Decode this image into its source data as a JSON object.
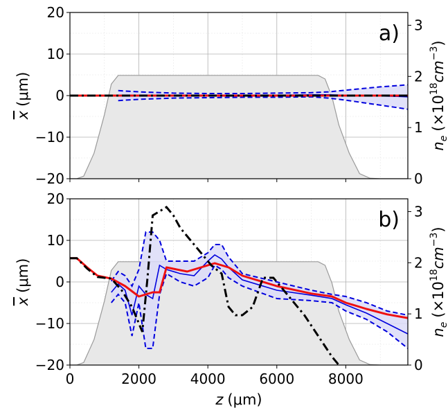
{
  "chart_data": [
    {
      "type": "line",
      "panel_label": "a)",
      "xlabel_main": "z",
      "xlabel_unit": "(μm)",
      "ylabel_symbol": "x",
      "ylabel_unit": "(μm)",
      "ylabel2_symbol": "n",
      "ylabel2_sub": "e",
      "ylabel2_pre": "(×10",
      "ylabel2_exp": "18",
      "ylabel2_mid": "cm",
      "ylabel2_exp2": "−3",
      "ylabel2_post": ")",
      "xlim": [
        0,
        9800
      ],
      "ylim": [
        -20,
        20
      ],
      "y2lim": [
        0,
        3.25
      ],
      "xticks": [
        0,
        2000,
        4000,
        6000,
        8000
      ],
      "yticks": [
        20,
        10,
        0,
        -10,
        -20
      ],
      "ytick_labels": [
        "20",
        "10",
        "0",
        "−10",
        "−20"
      ],
      "y2ticks": [
        3,
        2,
        1,
        0
      ],
      "grid": true,
      "density": {
        "color": "#e8e8e8",
        "z": [
          0,
          200,
          400,
          700,
          1000,
          1200,
          1400,
          7200,
          7400,
          7600,
          7800,
          8100,
          8400,
          8700,
          9000,
          9800
        ],
        "ne": [
          0,
          0,
          0.05,
          0.5,
          1.25,
          1.85,
          2.02,
          2.02,
          1.95,
          1.6,
          1.05,
          0.5,
          0.1,
          0.01,
          0,
          0
        ]
      },
      "band": {
        "color": "#0000dd",
        "fill": "#dcdcf8",
        "z": [
          1400,
          2000,
          3000,
          4000,
          5000,
          6000,
          7000,
          7500,
          8000,
          8500,
          9000,
          9500,
          9800
        ],
        "upper": [
          1.2,
          0.9,
          0.6,
          0.5,
          0.5,
          0.6,
          0.7,
          0.9,
          1.3,
          1.7,
          2.1,
          2.4,
          2.6
        ],
        "lower": [
          -1.2,
          -0.9,
          -0.6,
          -0.5,
          -0.4,
          -0.4,
          -0.3,
          -0.6,
          -1.1,
          -1.7,
          -2.3,
          -2.9,
          -3.3
        ],
        "mean": [
          0,
          0,
          0,
          0,
          0,
          0.1,
          0.2,
          0.2,
          0.1,
          0,
          -0.1,
          -0.2,
          -0.3
        ]
      },
      "red": {
        "color": "#ee1111",
        "x": [
          0,
          9800
        ],
        "y": [
          0,
          0
        ]
      },
      "black": {
        "color": "#000000",
        "x": [
          0,
          1300,
          9800
        ],
        "y": [
          0,
          0,
          0
        ]
      }
    },
    {
      "type": "line",
      "panel_label": "b)",
      "xlabel_main": "z",
      "xlabel_unit": "(μm)",
      "ylabel_symbol": "x",
      "ylabel_unit": "(μm)",
      "ylabel2_symbol": "n",
      "ylabel2_sub": "e",
      "ylabel2_pre": "(×10",
      "ylabel2_exp": "18",
      "ylabel2_mid": "cm",
      "ylabel2_exp2": "−3",
      "ylabel2_post": ")",
      "xlim": [
        0,
        9800
      ],
      "ylim": [
        -20,
        20
      ],
      "y2lim": [
        0,
        3.25
      ],
      "xticks": [
        0,
        2000,
        4000,
        6000,
        8000
      ],
      "xtick_labels": [
        "0",
        "2000",
        "4000",
        "6000",
        "8000"
      ],
      "yticks": [
        20,
        10,
        0,
        -10,
        -20
      ],
      "ytick_labels": [
        "20",
        "10",
        "0",
        "−10",
        "−20"
      ],
      "y2ticks": [
        3,
        2,
        1,
        0
      ],
      "grid": true,
      "density": {
        "color": "#e8e8e8",
        "z": [
          0,
          200,
          400,
          700,
          1000,
          1200,
          1400,
          7200,
          7400,
          7600,
          7800,
          8100,
          8400,
          8700,
          9000,
          9800
        ],
        "ne": [
          0,
          0,
          0.05,
          0.5,
          1.25,
          1.85,
          2.02,
          2.02,
          1.95,
          1.6,
          1.05,
          0.5,
          0.1,
          0.01,
          0,
          0
        ]
      },
      "band": {
        "color": "#0000dd",
        "fill": "#dcdcf8",
        "z": [
          1200,
          1400,
          1600,
          1800,
          2000,
          2200,
          2400,
          2600,
          2800,
          3200,
          3600,
          4000,
          4200,
          4400,
          4600,
          5000,
          6000,
          7000,
          7600,
          8000,
          8600,
          9200,
          9800
        ],
        "upper": [
          0.2,
          2.5,
          1.5,
          -1,
          3,
          12,
          12,
          10,
          5,
          5,
          5,
          7,
          9,
          9,
          6,
          2,
          0,
          -2,
          -3,
          -3.5,
          -5,
          -7,
          -8
        ],
        "lower": [
          -5,
          -3,
          -5,
          -13,
          -5,
          -16,
          -16,
          -3,
          2,
          0,
          -1,
          1,
          4,
          3,
          1,
          -1,
          -4,
          -4.5,
          -5,
          -7,
          -9,
          -12,
          -16
        ],
        "mean": [
          -2.5,
          -0.5,
          -2,
          -8,
          -1,
          -3,
          -4,
          4,
          3,
          2,
          1.5,
          5,
          6.5,
          5.5,
          3.5,
          0.5,
          -2,
          -3.2,
          -4,
          -5.5,
          -7.5,
          -10,
          -12.5
        ]
      },
      "red": {
        "color": "#ee1111",
        "x": [
          0,
          200,
          500,
          800,
          1200,
          1600,
          2000,
          2400,
          2600,
          2800,
          3400,
          3800,
          4200,
          4600,
          5000,
          6000,
          7000,
          7600,
          8000,
          8600,
          9200,
          9800
        ],
        "y": [
          5.7,
          5.7,
          3.5,
          1.5,
          0.8,
          -1,
          -3.5,
          -2.5,
          -2.5,
          3.5,
          2.5,
          3.5,
          4.5,
          3.5,
          1.5,
          -1,
          -2.8,
          -3.5,
          -5,
          -6.5,
          -7.8,
          -8.7
        ]
      },
      "black": {
        "color": "#000000",
        "x": [
          0,
          200,
          500,
          800,
          1200,
          1500,
          1800,
          2100,
          2250,
          2400,
          2600,
          2800,
          3000,
          3200,
          3500,
          3800,
          4100,
          4400,
          4600,
          4800,
          5000,
          5300,
          5600,
          5900,
          6300,
          6800,
          7200,
          7600,
          7800
        ],
        "y": [
          5.7,
          5.7,
          3.2,
          1.2,
          0.8,
          -2,
          -6,
          -12,
          1,
          16,
          17,
          18,
          16,
          13,
          10,
          7,
          4,
          2,
          -6,
          -8,
          -8,
          -6,
          1,
          1,
          -3,
          -8,
          -13,
          -18,
          -20
        ]
      }
    }
  ]
}
